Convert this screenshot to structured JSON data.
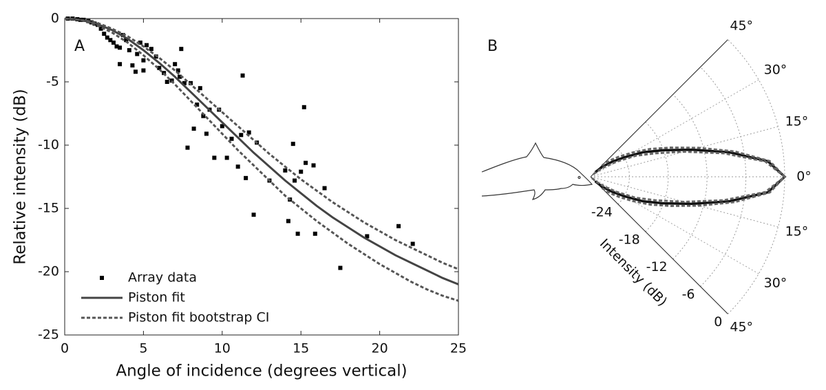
{
  "chart_data": [
    {
      "type": "scatter",
      "panel_label": "A",
      "xlabel": "Angle of incidence (degrees vertical)",
      "ylabel": "Relative intensity (dB)",
      "xlim": [
        0,
        25
      ],
      "ylim": [
        -25,
        0
      ],
      "xticks": [
        0,
        5,
        10,
        15,
        20,
        25
      ],
      "yticks": [
        -25,
        -20,
        -15,
        -10,
        -5,
        0
      ],
      "series": [
        {
          "name": "Array data",
          "style": "markers",
          "color": "#000000",
          "x": [
            0.2,
            0.5,
            0.8,
            1,
            1.2,
            1.5,
            1.7,
            1.9,
            2.1,
            2.3,
            2.5,
            2.7,
            2.9,
            3.1,
            3.3,
            3.5,
            3.5,
            3.7,
            3.9,
            4.1,
            4.3,
            4.5,
            4.6,
            4.8,
            5,
            5,
            5.2,
            5.5,
            5.8,
            6,
            6.3,
            6.5,
            6.8,
            7,
            7.2,
            7.3,
            7.4,
            7.6,
            7.8,
            8,
            8.2,
            8.4,
            8.6,
            8.8,
            9,
            9.2,
            9.5,
            9.8,
            10,
            10.3,
            10.6,
            11,
            11.2,
            11.3,
            11.5,
            11.7,
            12,
            12.2,
            13,
            14,
            14.2,
            14.3,
            14.5,
            14.6,
            14.8,
            15,
            15.2,
            15.3,
            15.8,
            15.9,
            16.5,
            17.5,
            19.2,
            21.2,
            22.1
          ],
          "values": [
            0,
            0,
            -0.05,
            -0.1,
            -0.1,
            -0.2,
            -0.3,
            -0.4,
            -0.5,
            -0.8,
            -1.2,
            -1.5,
            -1.7,
            -1.9,
            -2.2,
            -2.3,
            -3.6,
            -1.3,
            -1.7,
            -2.5,
            -3.7,
            -4.2,
            -2.8,
            -1.9,
            -3.3,
            -4.1,
            -2.1,
            -2.4,
            -3,
            -3.9,
            -4.3,
            -5,
            -4.9,
            -3.6,
            -4.1,
            -4.6,
            -2.4,
            -5.1,
            -10.2,
            -5.1,
            -8.7,
            -6.8,
            -5.5,
            -7.7,
            -9.1,
            -7.2,
            -11,
            -7.2,
            -8.5,
            -11,
            -9.5,
            -11.7,
            -9.2,
            -4.5,
            -12.6,
            -9,
            -15.5,
            -9.8,
            -12.8,
            -12,
            -16,
            -14.3,
            -9.9,
            -12.8,
            -17,
            -12.1,
            -7,
            -11.4,
            -11.6,
            -17,
            -13.4,
            -19.7,
            -17.2,
            -16.4,
            -17.8
          ]
        },
        {
          "name": "Piston fit",
          "style": "solid",
          "color": "#444444",
          "x": [
            0,
            1,
            2,
            3,
            4,
            5,
            6,
            7,
            8,
            9,
            10,
            11,
            12,
            13,
            14,
            15,
            16,
            17,
            18,
            19,
            20,
            21,
            22,
            23,
            24,
            25
          ],
          "values": [
            0,
            -0.1,
            -0.4,
            -0.9,
            -1.6,
            -2.5,
            -3.5,
            -4.6,
            -5.8,
            -7,
            -8.2,
            -9.4,
            -10.6,
            -11.7,
            -12.8,
            -13.8,
            -14.8,
            -15.7,
            -16.5,
            -17.3,
            -18,
            -18.7,
            -19.3,
            -19.9,
            -20.5,
            -21
          ]
        },
        {
          "name": "Piston fit bootstrap CI",
          "style": "dashed",
          "color": "#555555",
          "x": [
            0,
            1,
            2,
            3,
            4,
            5,
            6,
            7,
            8,
            9,
            10,
            11,
            12,
            13,
            14,
            15,
            16,
            17,
            18,
            19,
            20,
            21,
            22,
            23,
            24,
            25
          ],
          "values": [
            0,
            -0.1,
            -0.3,
            -0.8,
            -1.4,
            -2.2,
            -3.1,
            -4.1,
            -5.2,
            -6.3,
            -7.4,
            -8.5,
            -9.6,
            -10.7,
            -11.7,
            -12.7,
            -13.6,
            -14.5,
            -15.3,
            -16.1,
            -16.8,
            -17.5,
            -18.1,
            -18.7,
            -19.3,
            -19.8
          ]
        },
        {
          "style": "dashed",
          "color": "#555555",
          "x": [
            0,
            1,
            2,
            3,
            4,
            5,
            6,
            7,
            8,
            9,
            10,
            11,
            12,
            13,
            14,
            15,
            16,
            17,
            18,
            19,
            20,
            21,
            22,
            23,
            24,
            25
          ],
          "values": [
            0,
            -0.1,
            -0.5,
            -1.1,
            -1.9,
            -2.9,
            -4,
            -5.2,
            -6.5,
            -7.8,
            -9.1,
            -10.4,
            -11.6,
            -12.8,
            -14,
            -15,
            -16,
            -16.9,
            -17.8,
            -18.6,
            -19.4,
            -20.1,
            -20.8,
            -21.4,
            -21.9,
            -22.3
          ]
        }
      ]
    },
    {
      "type": "polar",
      "panel_label": "B",
      "rlabel": "Intensity (dB)",
      "rlim": [
        -30,
        0
      ],
      "rticks": [
        -24,
        -18,
        -12,
        -6,
        0
      ],
      "thetalim": [
        -45,
        45
      ],
      "thetaticks": [
        {
          "value": 45,
          "label": "45°"
        },
        {
          "value": 30,
          "label": "30°"
        },
        {
          "value": 15,
          "label": "15°"
        },
        {
          "value": 0,
          "label": "0°"
        },
        {
          "value": -15,
          "label": "15°"
        },
        {
          "value": -30,
          "label": "30°"
        },
        {
          "value": -45,
          "label": "45°"
        }
      ],
      "theta": [
        -45,
        -40,
        -35,
        -30,
        -25,
        -20,
        -15,
        -10,
        -5,
        0,
        5,
        10,
        15,
        20,
        25,
        30,
        35,
        40,
        45
      ],
      "series": [
        {
          "style": "solid",
          "color": "#111111",
          "values": [
            -29,
            -27.5,
            -26,
            -24,
            -21,
            -18,
            -13.8,
            -8.2,
            -2.5,
            0,
            -2.5,
            -8.2,
            -13.8,
            -18,
            -21,
            -24,
            -26,
            -27.5,
            -29
          ]
        },
        {
          "style": "dashed",
          "color": "#666666",
          "values": [
            -27.5,
            -26,
            -24.5,
            -22.5,
            -19.8,
            -16.8,
            -12.7,
            -7.4,
            -2.2,
            0,
            -2.2,
            -7.4,
            -12.7,
            -16.8,
            -19.8,
            -22.5,
            -24.5,
            -26,
            -27.5
          ]
        },
        {
          "style": "dashed",
          "color": "#666666",
          "values": [
            -29.7,
            -28.7,
            -27.3,
            -25.3,
            -22.3,
            -19.4,
            -15,
            -9.1,
            -2.9,
            0,
            -2.9,
            -9.1,
            -15,
            -19.4,
            -22.3,
            -25.3,
            -27.3,
            -28.7,
            -29.7
          ]
        }
      ]
    }
  ]
}
